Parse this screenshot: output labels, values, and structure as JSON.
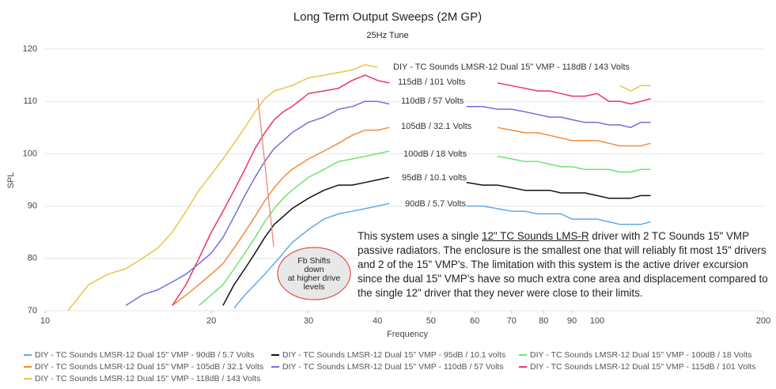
{
  "chart_data": {
    "type": "line",
    "title": "Long Term Output Sweeps (2M GP)",
    "subtitle": "25Hz Tune",
    "x_label": "Frequency",
    "y_label": "SPL",
    "x_log": true,
    "grid": true,
    "xlim": [
      10,
      200
    ],
    "xticks": [
      10,
      20,
      30,
      40,
      50,
      60,
      70,
      80,
      90,
      100,
      200
    ],
    "ylim": [
      70,
      120
    ],
    "yticks": [
      70,
      80,
      90,
      100,
      110,
      120
    ],
    "legend_position": "bottom",
    "x": [
      11,
      12,
      13,
      14,
      15,
      16,
      17,
      18,
      19,
      20,
      21,
      22,
      23,
      24,
      25,
      26,
      27,
      28,
      30,
      32,
      34,
      36,
      38,
      40,
      42,
      45,
      48,
      52,
      58,
      62,
      66,
      70,
      74,
      78,
      82,
      86,
      90,
      95,
      100,
      105,
      110,
      115,
      120,
      125
    ],
    "series": [
      {
        "name": "DIY - TC Sounds LMSR-12 Dual 15\" VMP - 90dB / 5.7 Volts",
        "color": "#64a8e6",
        "values": [
          null,
          null,
          null,
          null,
          null,
          null,
          null,
          null,
          null,
          null,
          null,
          70.5,
          73,
          75,
          77,
          79,
          81,
          83,
          85.5,
          87.5,
          88.5,
          89,
          89.5,
          90,
          90.5,
          null,
          null,
          null,
          90,
          90,
          89.5,
          89,
          89,
          88.5,
          88.5,
          88.5,
          87.5,
          87.5,
          87.5,
          87,
          86.5,
          86.5,
          86.5,
          87
        ]
      },
      {
        "name": "DIY - TC Sounds LMSR-12 Dual 15\" VMP - 95dB / 10.1 volts",
        "color": "#111111",
        "values": [
          null,
          null,
          null,
          null,
          null,
          null,
          null,
          null,
          null,
          null,
          71,
          75,
          78,
          81,
          84,
          86.5,
          88,
          89.5,
          91.5,
          93,
          94,
          94,
          94.5,
          95,
          95.5,
          null,
          null,
          null,
          94.5,
          94,
          94,
          93.5,
          93,
          93,
          93,
          92.5,
          92.5,
          92.5,
          92,
          91.5,
          91.5,
          91.5,
          92,
          92
        ]
      },
      {
        "name": "DIY - TC Sounds LMSR-12 Dual 15\" VMP - 100dB / 18 Volts",
        "color": "#6ee36e",
        "values": [
          null,
          null,
          null,
          null,
          null,
          null,
          null,
          null,
          71,
          73,
          75,
          78,
          81,
          84,
          87,
          89.5,
          91.5,
          93,
          95.5,
          97,
          98.5,
          99,
          99.5,
          100,
          100.5,
          null,
          null,
          null,
          null,
          null,
          99.5,
          99,
          98.5,
          98.5,
          98,
          97.5,
          97.5,
          97,
          97,
          97,
          96.5,
          96.5,
          97,
          97
        ]
      },
      {
        "name": "DIY - TC Sounds LMSR-12 Dual 15\" VMP - 105dB / 32.1 Volts",
        "color": "#f28c3c",
        "values": [
          null,
          null,
          null,
          null,
          null,
          null,
          71,
          73,
          75,
          77,
          79,
          82,
          85,
          88,
          91,
          93.5,
          95.5,
          97,
          99,
          100.5,
          102,
          103.5,
          104.5,
          104.5,
          105,
          null,
          null,
          null,
          null,
          null,
          105,
          104.5,
          104,
          104,
          103.5,
          103,
          102.5,
          102.5,
          102.5,
          102,
          101.5,
          101.5,
          101.5,
          102
        ]
      },
      {
        "name": "DIY - TC Sounds LMSR-12 Dual 15\" VMP - 110dB / 57 Volts",
        "color": "#6f6fe0",
        "values": [
          null,
          null,
          null,
          71,
          73,
          74,
          75.5,
          77,
          79,
          81,
          84,
          88,
          92,
          95.5,
          98.5,
          101,
          102.5,
          104,
          106,
          107,
          108.5,
          109,
          110,
          110,
          109.5,
          null,
          null,
          null,
          109,
          109,
          108.5,
          108.5,
          108,
          107.5,
          107,
          107,
          106.5,
          106,
          106,
          105.5,
          105.5,
          105,
          106,
          106
        ]
      },
      {
        "name": "DIY - TC Sounds LMSR-12 Dual 15\" VMP - 115dB / 101 Volts",
        "color": "#e8365f",
        "values": [
          null,
          null,
          null,
          null,
          null,
          null,
          71,
          75,
          80,
          85,
          89,
          93,
          97,
          101,
          104,
          106.5,
          108,
          109,
          111.5,
          112,
          112.5,
          114,
          115,
          114,
          113.5,
          null,
          null,
          null,
          null,
          null,
          113.5,
          113,
          112.5,
          112,
          112,
          111.5,
          111,
          111,
          111.5,
          110,
          110,
          109.5,
          110,
          110.5
        ]
      },
      {
        "name": "DIY - TC Sounds LMSR-12 Dual 15\" VMP - 118dB / 143 Volts",
        "color": "#e8c547",
        "values": [
          70,
          75,
          77,
          78,
          80,
          82,
          85,
          89,
          93,
          96,
          99,
          102,
          105,
          108,
          110.5,
          112,
          112.5,
          113,
          114.5,
          115,
          115.5,
          116,
          117,
          116.5,
          null,
          null,
          null,
          null,
          null,
          null,
          null,
          null,
          null,
          null,
          null,
          null,
          null,
          null,
          null,
          null,
          113,
          112,
          113,
          113
        ]
      }
    ],
    "series_labels": [
      "90dB / 5.7 Volts",
      "95dB / 10.1 volts",
      "100dB / 18 Volts",
      "105dB / 32.1 Volts",
      "110dB / 57 Volts",
      "115dB / 101 Volts",
      "DIY - TC Sounds LMSR-12 Dual 15\" VMP - 118dB / 143 Volts"
    ],
    "callout": [
      "Fb Shifts",
      "down",
      "at higher drive",
      "levels"
    ],
    "note": {
      "before": "This system uses a single ",
      "underlined": "12\" TC Sounds LMS-R",
      "after": " driver with 2 TC Sounds 15\" VMP passive radiators. The enclosure is the smallest one that will reliably fit most 15\" drivers and 2 of the 15\" VMP's. The limitation with this system is the active driver excursion since the dual 15\" VMP's have so much extra cone area and displacement compared to the single 12\" driver that they never were close to their limits."
    }
  }
}
